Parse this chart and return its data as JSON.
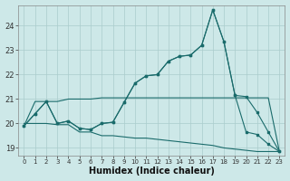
{
  "xlabel": "Humidex (Indice chaleur)",
  "bg_color": "#cde8e8",
  "grid_color": "#aacccc",
  "line_color": "#1a6b6b",
  "xlim": [
    -0.5,
    23.5
  ],
  "ylim": [
    18.7,
    24.85
  ],
  "yticks": [
    19,
    20,
    21,
    22,
    23,
    24
  ],
  "xticks": [
    0,
    1,
    2,
    3,
    4,
    5,
    6,
    7,
    8,
    9,
    10,
    11,
    12,
    13,
    14,
    15,
    16,
    17,
    18,
    19,
    20,
    21,
    22,
    23
  ],
  "line1_x": [
    0,
    1,
    2,
    3,
    4,
    5,
    6,
    7,
    8,
    9,
    10,
    11,
    12,
    13,
    14,
    15,
    16,
    17,
    18,
    19,
    20,
    21,
    22,
    23
  ],
  "line1_y": [
    19.9,
    20.4,
    20.9,
    20.0,
    20.1,
    19.8,
    19.75,
    20.0,
    20.05,
    20.85,
    21.65,
    21.95,
    22.0,
    22.55,
    22.75,
    22.8,
    23.2,
    24.65,
    23.35,
    21.15,
    19.65,
    19.55,
    19.15,
    18.85
  ],
  "line2_x": [
    0,
    1,
    2,
    3,
    4,
    5,
    6,
    7,
    8,
    9,
    10,
    11,
    12,
    13,
    14,
    15,
    16,
    17,
    18,
    19,
    20,
    21,
    22,
    23
  ],
  "line2_y": [
    19.9,
    20.4,
    20.9,
    20.0,
    20.1,
    19.8,
    19.75,
    20.0,
    20.05,
    20.85,
    21.65,
    21.95,
    22.0,
    22.55,
    22.75,
    22.8,
    23.2,
    24.65,
    23.35,
    21.15,
    21.1,
    20.45,
    19.65,
    18.85
  ],
  "line3_x": [
    0,
    1,
    2,
    3,
    4,
    5,
    6,
    7,
    8,
    9,
    10,
    11,
    12,
    13,
    14,
    15,
    16,
    17,
    18,
    19,
    20,
    21,
    22,
    23
  ],
  "line3_y": [
    19.9,
    20.9,
    20.9,
    20.9,
    21.0,
    21.0,
    21.0,
    21.05,
    21.05,
    21.05,
    21.05,
    21.05,
    21.05,
    21.05,
    21.05,
    21.05,
    21.05,
    21.05,
    21.05,
    21.05,
    21.05,
    21.05,
    21.05,
    18.85
  ],
  "line4_x": [
    0,
    1,
    2,
    3,
    4,
    5,
    6,
    7,
    8,
    9,
    10,
    11,
    12,
    13,
    14,
    15,
    16,
    17,
    18,
    19,
    20,
    21,
    22,
    23
  ],
  "line4_y": [
    20.0,
    20.0,
    20.0,
    19.95,
    19.95,
    19.65,
    19.65,
    19.5,
    19.5,
    19.45,
    19.4,
    19.4,
    19.35,
    19.3,
    19.25,
    19.2,
    19.15,
    19.1,
    19.0,
    18.95,
    18.9,
    18.85,
    18.85,
    18.85
  ]
}
